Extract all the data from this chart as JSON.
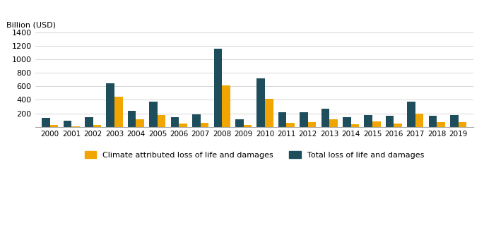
{
  "years": [
    2000,
    2001,
    2002,
    2003,
    2004,
    2005,
    2006,
    2007,
    2008,
    2009,
    2010,
    2011,
    2012,
    2013,
    2014,
    2015,
    2016,
    2017,
    2018,
    2019
  ],
  "total_loss": [
    130,
    95,
    140,
    650,
    235,
    370,
    140,
    190,
    1160,
    110,
    715,
    220,
    215,
    270,
    140,
    175,
    170,
    375,
    165,
    175
  ],
  "climate_loss": [
    25,
    10,
    25,
    450,
    115,
    175,
    55,
    65,
    615,
    30,
    415,
    65,
    75,
    115,
    35,
    85,
    45,
    200,
    70,
    75
  ],
  "color_total": "#1e4d5c",
  "color_climate": "#f0a500",
  "ylabel": "Billion (USD)",
  "ylim": [
    0,
    1400
  ],
  "yticks": [
    0,
    200,
    400,
    600,
    800,
    1000,
    1200,
    1400
  ],
  "legend_label_climate": "Climate attributed loss of life and damages",
  "legend_label_total": "Total loss of life and damages",
  "bar_width": 0.38,
  "background_color": "#ffffff",
  "grid_color": "#d0d0d0"
}
